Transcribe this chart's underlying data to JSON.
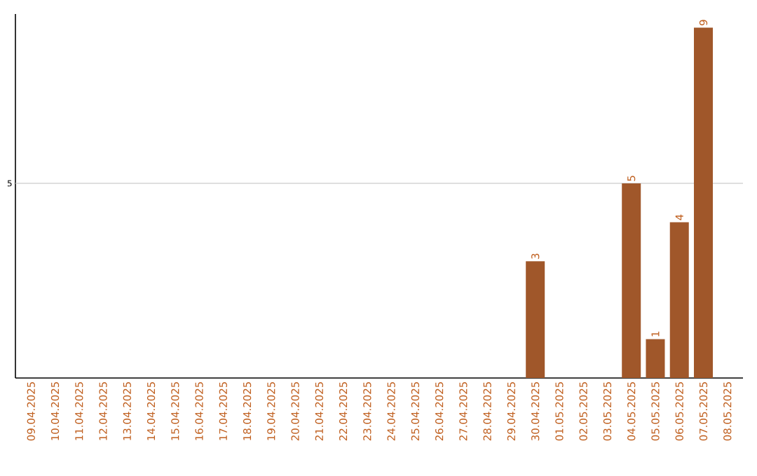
{
  "chart_data": {
    "type": "bar",
    "categories": [
      "09.04.2025",
      "10.04.2025",
      "11.04.2025",
      "12.04.2025",
      "13.04.2025",
      "14.04.2025",
      "15.04.2025",
      "16.04.2025",
      "17.04.2025",
      "18.04.2025",
      "19.04.2025",
      "20.04.2025",
      "21.04.2025",
      "22.04.2025",
      "23.04.2025",
      "24.04.2025",
      "25.04.2025",
      "26.04.2025",
      "27.04.2025",
      "28.04.2025",
      "29.04.2025",
      "30.04.2025",
      "01.05.2025",
      "02.05.2025",
      "03.05.2025",
      "04.05.2025",
      "05.05.2025",
      "06.05.2025",
      "07.05.2025",
      "08.05.2025"
    ],
    "values": [
      null,
      null,
      null,
      null,
      null,
      null,
      null,
      null,
      null,
      null,
      null,
      null,
      null,
      null,
      null,
      null,
      null,
      null,
      null,
      null,
      null,
      3,
      null,
      null,
      null,
      5,
      1,
      4,
      9,
      null
    ],
    "data_labels": true,
    "color": "#a0572a",
    "ylim": [
      0,
      9.35
    ],
    "ref_lines": [
      {
        "axis": "y",
        "value": 5,
        "label": "5",
        "color": "#cccccc"
      }
    ]
  }
}
